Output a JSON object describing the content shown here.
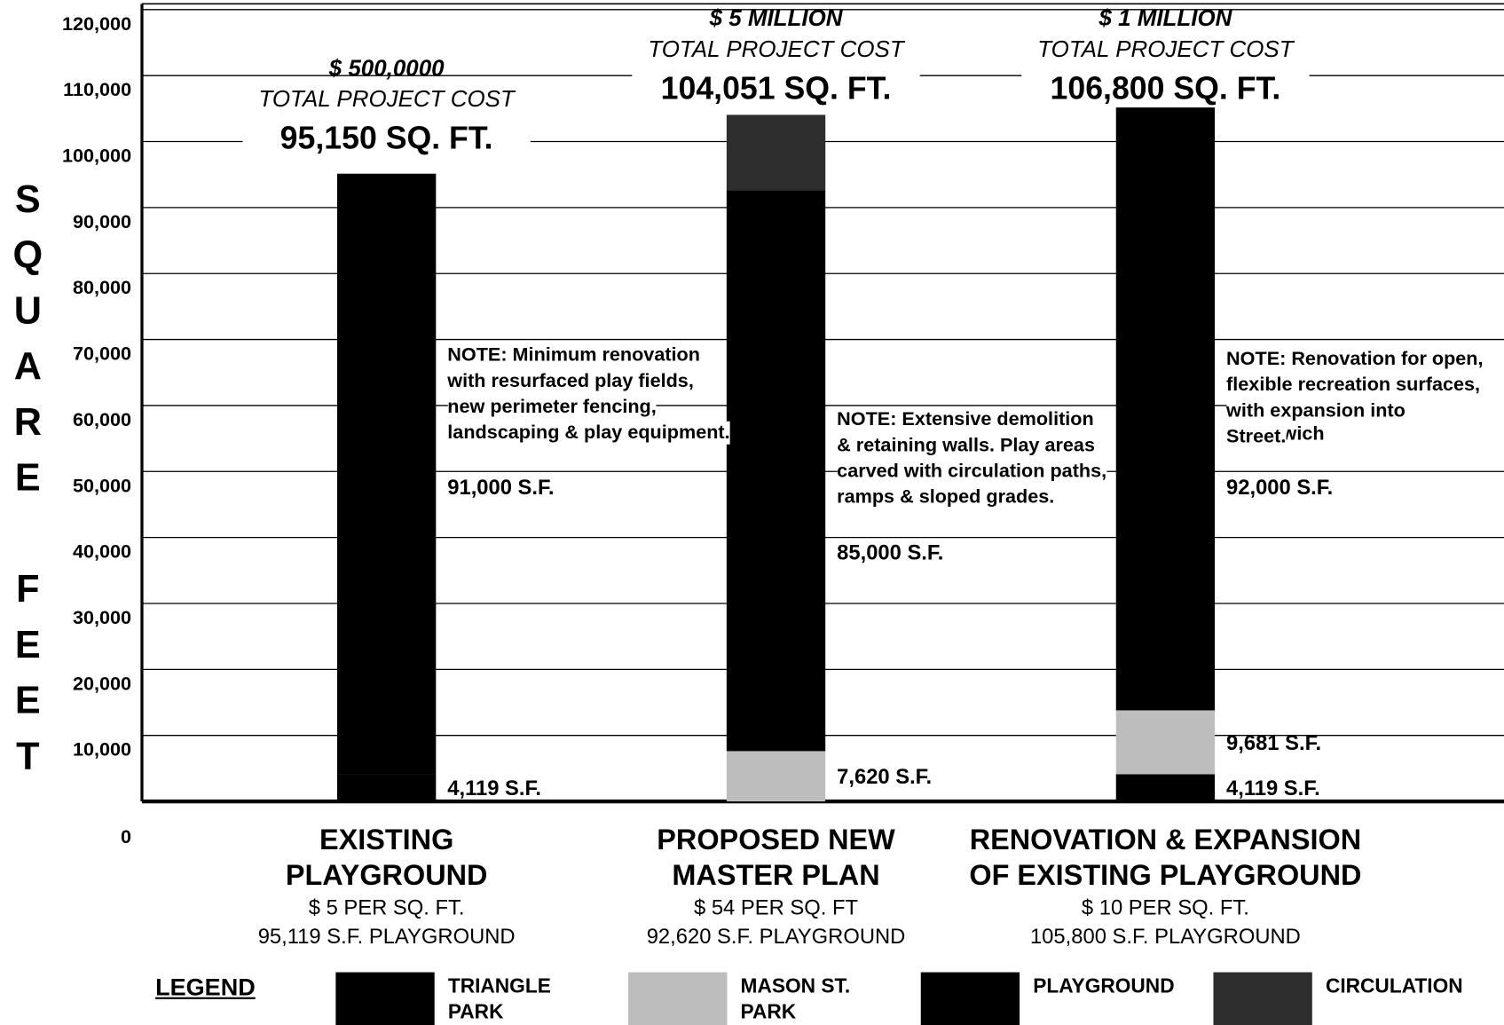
{
  "chart_data": {
    "type": "stacked_bar",
    "y_label": "SQUARE FEET",
    "categories": [
      "EXISTING\nPLAYGROUND",
      "PROPOSED NEW\nMASTER PLAN",
      "RENOVATION & EXPANSION\nOF EXISTING PLAYGROUND"
    ],
    "series": [
      {
        "name": "TRIANGLE\nPARK",
        "color": "#000000",
        "values": [
          4119,
          null,
          4119
        ],
        "value_labels": [
          "4,119 S.F.",
          null,
          "4,119 S.F."
        ]
      },
      {
        "name": "MASON ST.\nPARK",
        "color": "#bdbdbd",
        "values": [
          null,
          7620,
          9681
        ],
        "value_labels": [
          null,
          "7,620 S.F.",
          "9,681 S.F."
        ]
      },
      {
        "name": "PLAYGROUND",
        "color": "#000000",
        "values": [
          91000,
          85000,
          92000
        ],
        "value_labels": [
          "91,000 S.F.",
          "85,000 S.F.",
          "92,000 S.F."
        ]
      },
      {
        "name": "CIRCULATION",
        "color": "#2e2e2e",
        "values": [
          31,
          11431,
          1000
        ]
      }
    ],
    "ylim": [
      0,
      120000
    ],
    "yticks": [
      0,
      {
        "value": 10000,
        "label": "10,000"
      },
      {
        "value": 20000,
        "label": "20,000"
      },
      {
        "value": 30000,
        "label": "30,000"
      },
      {
        "value": 40000,
        "label": "40,000"
      },
      {
        "value": 50000,
        "label": "50,000"
      },
      {
        "value": 60000,
        "label": "60,000"
      },
      {
        "value": 70000,
        "label": "70,000"
      },
      {
        "value": 80000,
        "label": "80,000"
      },
      {
        "value": 90000,
        "label": "90,000"
      },
      {
        "value": 100000,
        "label": "100,000"
      },
      {
        "value": 110000,
        "label": "110,000"
      },
      {
        "value": 120000,
        "label": "120,000"
      }
    ],
    "grid": true,
    "legend_title": "LEGEND",
    "annotations": [
      {
        "cost": "$ 500,0000",
        "cost_caption": "TOTAL PROJECT COST",
        "total": "95,150 SQ. FT.",
        "note": [
          "NOTE:  Minimum renovation",
          "with resurfaced play fields,",
          "new perimeter fencing,",
          "landscaping & play equipment."
        ],
        "rate": "$ 5 PER SQ. FT.",
        "playground_area": "95,119 S.F. PLAYGROUND"
      },
      {
        "cost": "$ 5 MILLION",
        "cost_caption": "TOTAL PROJECT COST",
        "total": "104,051 SQ. FT.",
        "note": [
          "NOTE:  Extensive demolition",
          "& retaining walls.  Play areas",
          "carved with circulation paths,",
          "ramps & sloped grades."
        ],
        "rate": "$ 54 PER SQ. FT",
        "playground_area": "92,620 S.F. PLAYGROUND"
      },
      {
        "cost": "$ 1 MILLION",
        "cost_caption": "TOTAL PROJECT COST",
        "total": "106,800 SQ. FT.",
        "note": [
          "NOTE:  Renovation for open,",
          "flexible recreation surfaces,",
          "with expansion into Greenwich",
          "Street."
        ],
        "rate": "$ 10 PER SQ. FT.",
        "playground_area": "105,800 S.F. PLAYGROUND"
      }
    ]
  }
}
